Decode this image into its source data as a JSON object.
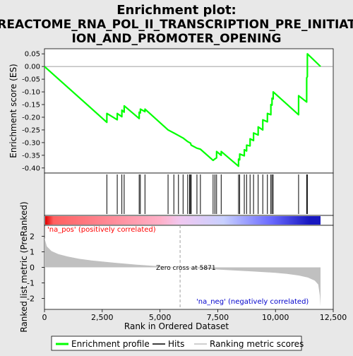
{
  "chart_data": {
    "type": "line",
    "title": "Enrichment plot:",
    "subtitle_lines": [
      "REACTOME_RNA_POL_II_TRANSCRIPTION_PRE_INITIAT",
      "ION_AND_PROMOTER_OPENING"
    ],
    "xlabel": "Rank in Ordered Dataset",
    "es_ylabel": "Enrichment score (ES)",
    "metric_ylabel": "Ranked list metric (PreRanked)",
    "xlim": [
      0,
      12500
    ],
    "x_ticks": [
      0,
      2500,
      5000,
      7500,
      10000,
      12500
    ],
    "x_tick_labels": [
      "0",
      "2,500",
      "5,000",
      "7,500",
      "10,000",
      "12,500"
    ],
    "es_ylim": [
      -0.42,
      0.07
    ],
    "es_ticks": [
      0.05,
      0.0,
      -0.05,
      -0.1,
      -0.15,
      -0.2,
      -0.25,
      -0.3,
      -0.35,
      -0.4
    ],
    "es_tick_labels": [
      "0.05",
      "0.00",
      "-0.05",
      "-0.10",
      "-0.15",
      "-0.20",
      "-0.25",
      "-0.30",
      "-0.35",
      "-0.40"
    ],
    "metric_ylim": [
      -2.7,
      2.7
    ],
    "metric_ticks": [
      2,
      1,
      0,
      -1,
      -2
    ],
    "metric_tick_labels": [
      "2",
      "1",
      "0",
      "-1",
      "-2"
    ],
    "total_rank": 11950,
    "zero_cross": 5871,
    "zero_cross_label": "Zero cross at 5871",
    "pos_label": "'na_pos' (positively correlated)",
    "neg_label": "'na_neg' (negatively correlated)",
    "hits": [
      2700,
      3150,
      3350,
      3450,
      4100,
      4150,
      4350,
      5350,
      5600,
      5800,
      6000,
      6200,
      6280,
      6320,
      6350,
      6600,
      6750,
      7300,
      7380,
      7450,
      7650,
      8400,
      8450,
      8650,
      8750,
      8900,
      9050,
      9250,
      9450,
      9650,
      9800,
      9850,
      9900,
      11000,
      11350,
      11380
    ],
    "es_series": {
      "name": "Enrichment profile",
      "x": [
        0,
        2700,
        2701,
        3150,
        3151,
        3350,
        3351,
        3450,
        3451,
        4100,
        4101,
        4150,
        4151,
        4350,
        4351,
        5350,
        5351,
        5600,
        5601,
        5800,
        5801,
        6000,
        6001,
        6200,
        6201,
        6280,
        6281,
        6320,
        6321,
        6350,
        6351,
        6600,
        6601,
        6750,
        6751,
        7300,
        7301,
        7380,
        7381,
        7450,
        7451,
        7650,
        7651,
        8400,
        8401,
        8450,
        8451,
        8650,
        8651,
        8750,
        8751,
        8900,
        8901,
        9050,
        9051,
        9250,
        9251,
        9450,
        9451,
        9650,
        9651,
        9800,
        9801,
        9850,
        9851,
        9900,
        9901,
        11000,
        11001,
        11350,
        11351,
        11380,
        11381,
        11950
      ],
      "y": [
        0.0,
        -0.22,
        -0.185,
        -0.21,
        -0.185,
        -0.198,
        -0.172,
        -0.18,
        -0.155,
        -0.205,
        -0.18,
        -0.183,
        -0.168,
        -0.178,
        -0.168,
        -0.25,
        -0.25,
        -0.262,
        -0.262,
        -0.272,
        -0.272,
        -0.282,
        -0.282,
        -0.296,
        -0.296,
        -0.3,
        -0.3,
        -0.302,
        -0.302,
        -0.31,
        -0.31,
        -0.322,
        -0.322,
        -0.326,
        -0.326,
        -0.37,
        -0.37,
        -0.364,
        -0.364,
        -0.36,
        -0.335,
        -0.35,
        -0.335,
        -0.393,
        -0.365,
        -0.368,
        -0.345,
        -0.352,
        -0.328,
        -0.333,
        -0.31,
        -0.313,
        -0.285,
        -0.292,
        -0.262,
        -0.27,
        -0.238,
        -0.25,
        -0.21,
        -0.218,
        -0.185,
        -0.19,
        -0.15,
        -0.152,
        -0.125,
        -0.128,
        -0.1,
        -0.19,
        -0.115,
        -0.14,
        -0.045,
        -0.04,
        0.05,
        0.0
      ]
    },
    "metric_series": {
      "name": "Ranking metric scores",
      "x": [
        0,
        100,
        300,
        600,
        1000,
        1500,
        2000,
        3000,
        4000,
        5000,
        5871,
        7000,
        8000,
        9000,
        10000,
        10500,
        11000,
        11400,
        11700,
        11850,
        11920,
        11950
      ],
      "y": [
        1.9,
        1.35,
        1.05,
        0.85,
        0.7,
        0.55,
        0.45,
        0.3,
        0.17,
        0.07,
        0.0,
        -0.1,
        -0.18,
        -0.26,
        -0.35,
        -0.42,
        -0.52,
        -0.65,
        -0.85,
        -1.1,
        -1.8,
        -2.5
      ]
    },
    "legend": {
      "position": "bottom",
      "entries": [
        "Enrichment profile",
        "Hits",
        "Ranking metric scores"
      ]
    },
    "colors": {
      "es_line": "#00ff00",
      "hit": "#000000",
      "metric_fill": "#c0c0c0",
      "zero_line": "#a0a0a0",
      "pos_label": "#ff0000",
      "neg_label": "#0000cc",
      "gradient": [
        "#e00000",
        "#ff6060",
        "#ffb0c8",
        "#f0c8f0",
        "#c8d0ff",
        "#6a6aff",
        "#1818c0"
      ]
    }
  }
}
